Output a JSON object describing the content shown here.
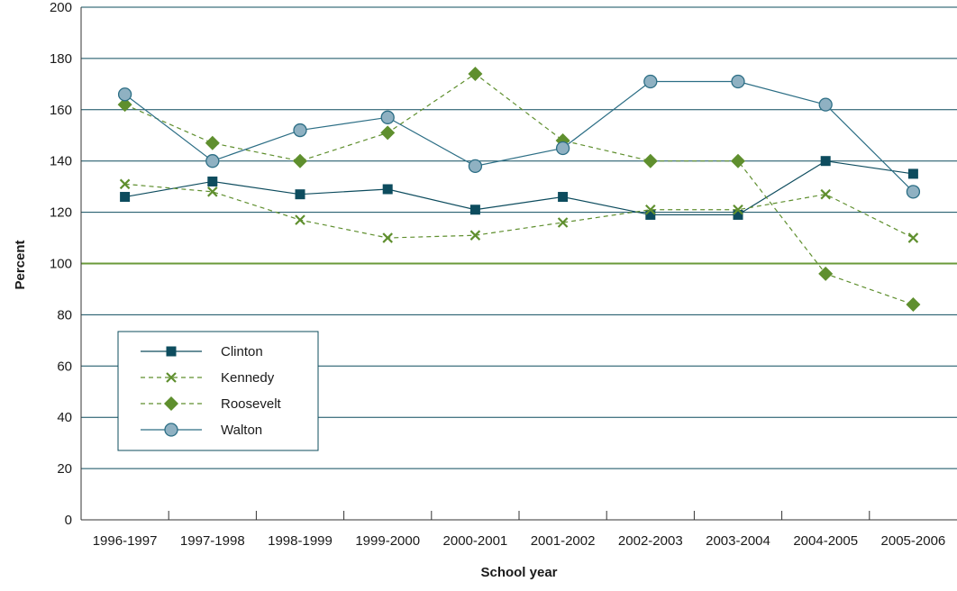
{
  "chart_data": {
    "type": "line",
    "title": "",
    "xlabel": "School year",
    "ylabel": "Percent",
    "ylim": [
      0,
      200
    ],
    "yticks": [
      0,
      20,
      40,
      60,
      80,
      100,
      120,
      140,
      160,
      180,
      200
    ],
    "categories": [
      "1996-1997",
      "1997-1998",
      "1998-1999",
      "1999-2000",
      "2000-2001",
      "2001-2002",
      "2002-2003",
      "2003-2004",
      "2004-2005",
      "2005-2006"
    ],
    "reference_line": {
      "value": 100,
      "color": "#6a9a3a"
    },
    "grid": "horizontal",
    "legend_position": "lower-left",
    "series": [
      {
        "name": "Clinton",
        "values": [
          126,
          132,
          127,
          129,
          121,
          126,
          119,
          119,
          140,
          135
        ],
        "color": "#0d4c5e",
        "line": "solid",
        "marker": "square"
      },
      {
        "name": "Kennedy",
        "values": [
          131,
          128,
          117,
          110,
          111,
          116,
          121,
          121,
          127,
          110
        ],
        "color": "#5f8f2e",
        "line": "dashed",
        "marker": "x"
      },
      {
        "name": "Roosevelt",
        "values": [
          162,
          147,
          140,
          151,
          174,
          148,
          140,
          140,
          96,
          84
        ],
        "color": "#5f8f2e",
        "line": "dashed",
        "marker": "diamond"
      },
      {
        "name": "Walton",
        "values": [
          166,
          140,
          152,
          157,
          138,
          145,
          171,
          171,
          162,
          128
        ],
        "color": "#2c6e85",
        "line": "solid",
        "marker": "circle",
        "marker_fill": "#8fb1c2"
      }
    ]
  }
}
